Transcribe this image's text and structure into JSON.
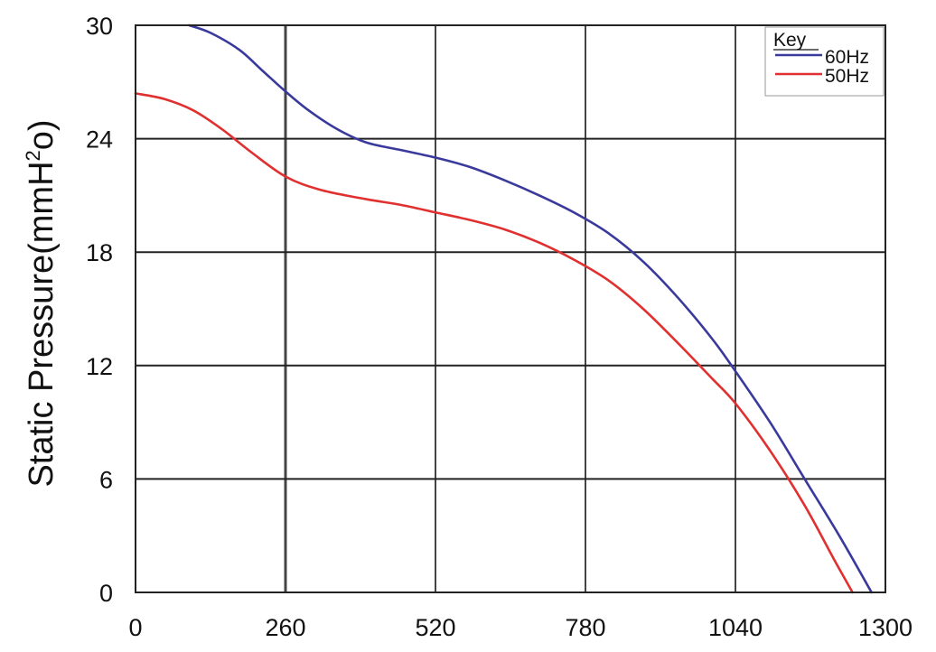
{
  "chart_data": {
    "type": "line",
    "title": "",
    "xlabel": "",
    "ylabel": {
      "main": "Static Pressure(mmH",
      "sup": "2",
      "suffix": "o)"
    },
    "xlim": [
      0,
      1300
    ],
    "ylim": [
      0,
      30
    ],
    "x_ticks": [
      0,
      260,
      520,
      780,
      1040,
      1300
    ],
    "y_ticks": [
      0,
      6,
      12,
      18,
      24,
      30
    ],
    "grid": true,
    "legend": {
      "title": "Key",
      "position": "top-right"
    },
    "series": [
      {
        "name": "60Hz",
        "color": "#3a3a9c",
        "points": [
          [
            93,
            30
          ],
          [
            130,
            29.6
          ],
          [
            180,
            28.7
          ],
          [
            220,
            27.6
          ],
          [
            260,
            26.5
          ],
          [
            300,
            25.5
          ],
          [
            350,
            24.5
          ],
          [
            400,
            23.8
          ],
          [
            460,
            23.4
          ],
          [
            520,
            23.0
          ],
          [
            580,
            22.5
          ],
          [
            640,
            21.8
          ],
          [
            700,
            21.0
          ],
          [
            760,
            20.1
          ],
          [
            820,
            19.0
          ],
          [
            880,
            17.5
          ],
          [
            940,
            15.6
          ],
          [
            1000,
            13.4
          ],
          [
            1040,
            11.7
          ],
          [
            1100,
            9.0
          ],
          [
            1160,
            6.0
          ],
          [
            1220,
            3.0
          ],
          [
            1276,
            0
          ]
        ]
      },
      {
        "name": "50Hz",
        "color": "#e03030",
        "points": [
          [
            0,
            26.4
          ],
          [
            50,
            26.1
          ],
          [
            100,
            25.5
          ],
          [
            150,
            24.5
          ],
          [
            200,
            23.3
          ],
          [
            260,
            22.0
          ],
          [
            320,
            21.3
          ],
          [
            400,
            20.8
          ],
          [
            460,
            20.5
          ],
          [
            520,
            20.1
          ],
          [
            580,
            19.7
          ],
          [
            640,
            19.2
          ],
          [
            700,
            18.5
          ],
          [
            760,
            17.6
          ],
          [
            820,
            16.5
          ],
          [
            880,
            15.0
          ],
          [
            940,
            13.2
          ],
          [
            1000,
            11.3
          ],
          [
            1040,
            10.0
          ],
          [
            1100,
            7.5
          ],
          [
            1160,
            4.6
          ],
          [
            1210,
            1.8
          ],
          [
            1243,
            0
          ]
        ]
      }
    ]
  }
}
